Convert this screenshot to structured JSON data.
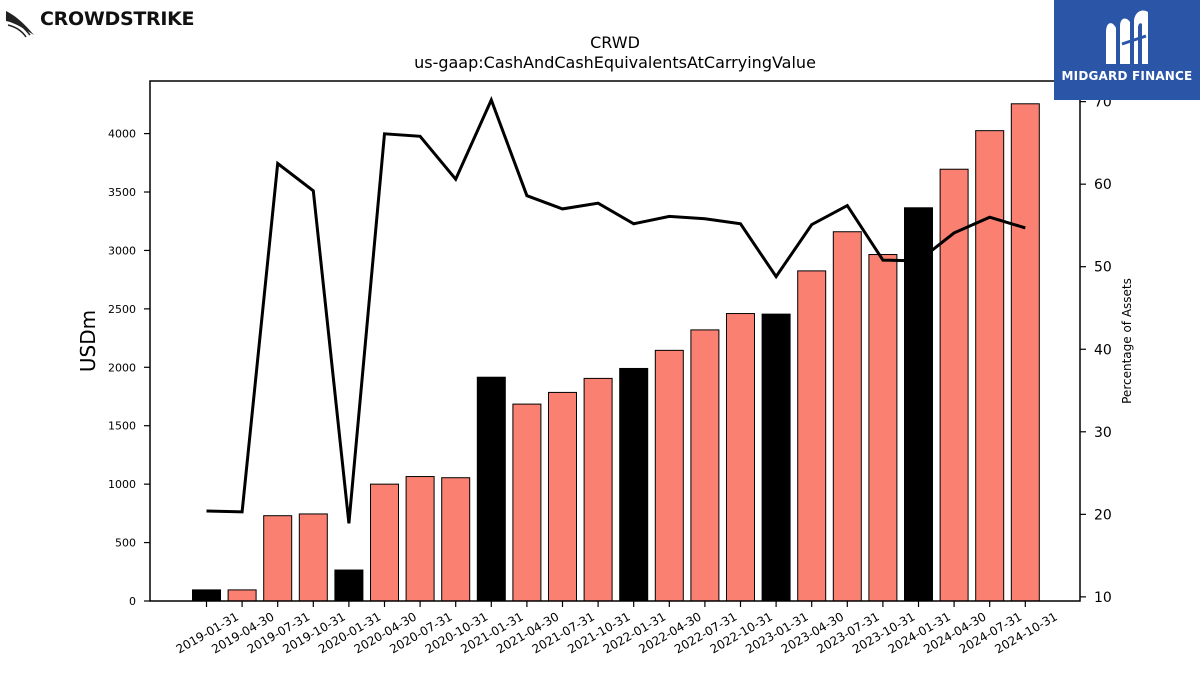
{
  "branding": {
    "left_logo": "CROWDSTRIKE",
    "right_logo": "MIDGARD FINANCE"
  },
  "chart_data": {
    "type": "bar",
    "title": "CRWD",
    "subtitle": "us-gaap:CashAndCashEquivalentsAtCarryingValue",
    "ylabel": "USDm",
    "y2label": "Percentage of Assets",
    "ylim": [
      0,
      4450
    ],
    "y2lim": [
      9.5,
      72.5
    ],
    "yticks": [
      0,
      500,
      1000,
      1500,
      2000,
      2500,
      3000,
      3500,
      4000
    ],
    "y2ticks": [
      10,
      20,
      30,
      40,
      50,
      60,
      70
    ],
    "categories": [
      "2019-01-31",
      "2019-04-30",
      "2019-07-31",
      "2019-10-31",
      "2020-01-31",
      "2020-04-30",
      "2020-07-31",
      "2020-10-31",
      "2021-01-31",
      "2021-04-30",
      "2021-07-31",
      "2021-10-31",
      "2022-01-31",
      "2022-04-30",
      "2022-07-31",
      "2022-10-31",
      "2023-01-31",
      "2023-04-30",
      "2023-07-31",
      "2023-10-31",
      "2024-01-31",
      "2024-04-30",
      "2024-07-31",
      "2024-10-31"
    ],
    "series": [
      {
        "values": [
          95,
          95,
          730,
          745,
          265,
          1000,
          1065,
          1055,
          1915,
          1685,
          1785,
          1905,
          1990,
          2145,
          2320,
          2460,
          2455,
          2825,
          3160,
          2965,
          3365,
          3695,
          4025,
          4255
        ]
      },
      {
        "values": [
          20.4,
          20.3,
          62.5,
          59.2,
          18.9,
          66.1,
          65.8,
          60.6,
          70.2,
          58.6,
          57.0,
          57.7,
          55.2,
          56.1,
          55.8,
          55.2,
          48.8,
          55.1,
          57.4,
          50.8,
          50.7,
          54.1,
          56.0,
          54.7
        ]
      }
    ],
    "bar_colors": [
      "#000000",
      "#fa8072",
      "#fa8072",
      "#fa8072",
      "#000000",
      "#fa8072",
      "#fa8072",
      "#fa8072",
      "#000000",
      "#fa8072",
      "#fa8072",
      "#fa8072",
      "#000000",
      "#fa8072",
      "#fa8072",
      "#fa8072",
      "#000000",
      "#fa8072",
      "#fa8072",
      "#fa8072",
      "#000000",
      "#fa8072",
      "#fa8072",
      "#fa8072"
    ],
    "line_color": "#000000",
    "grid": false
  }
}
